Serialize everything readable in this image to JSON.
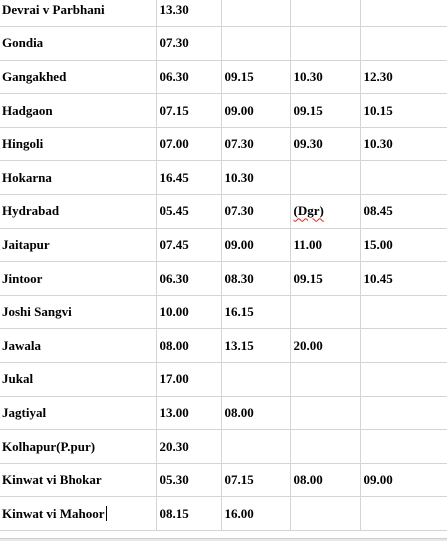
{
  "rows": [
    {
      "place": "Devrai v Parbhani",
      "times": [
        "13.30",
        "",
        "",
        ""
      ]
    },
    {
      "place": "Gondia",
      "times": [
        "07.30",
        "",
        "",
        ""
      ]
    },
    {
      "place": "Gangakhed",
      "times": [
        "06.30",
        "09.15",
        "10.30",
        "12.30"
      ]
    },
    {
      "place": "Hadgaon",
      "times": [
        "07.15",
        "09.00",
        "09.15",
        "10.15"
      ]
    },
    {
      "place": "Hingoli",
      "times": [
        "07.00",
        "07.30",
        "09.30",
        "10.30"
      ]
    },
    {
      "place": "Hokarna",
      "times": [
        "16.45",
        "10.30",
        "",
        ""
      ]
    },
    {
      "place": "Hydrabad",
      "times": [
        "05.45",
        "07.30",
        "(Dgr)",
        "08.45"
      ]
    },
    {
      "place": "Jaitapur",
      "times": [
        "07.45",
        "09.00",
        "11.00",
        "15.00"
      ]
    },
    {
      "place": "Jintoor",
      "times": [
        "06.30",
        "08.30",
        "09.15",
        "10.45"
      ]
    },
    {
      "place": "Joshi Sangvi",
      "times": [
        "10.00",
        "16.15",
        "",
        ""
      ]
    },
    {
      "place": "Jawala",
      "times": [
        "08.00",
        "13.15",
        "20.00",
        ""
      ]
    },
    {
      "place": "Jukal",
      "times": [
        "17.00",
        "",
        "",
        ""
      ]
    },
    {
      "place": "Jagtiyal",
      "times": [
        "13.00",
        "08.00",
        "",
        ""
      ]
    },
    {
      "place": "Kolhapur(P.pur)",
      "times": [
        "20.30",
        "",
        "",
        ""
      ]
    },
    {
      "place": "Kinwat vi Bhokar",
      "times": [
        "05.30",
        "07.15",
        "08.00",
        "09.00"
      ]
    },
    {
      "place": "Kinwat vi Mahoor",
      "times": [
        "08.15",
        "16.00",
        "",
        ""
      ]
    }
  ]
}
